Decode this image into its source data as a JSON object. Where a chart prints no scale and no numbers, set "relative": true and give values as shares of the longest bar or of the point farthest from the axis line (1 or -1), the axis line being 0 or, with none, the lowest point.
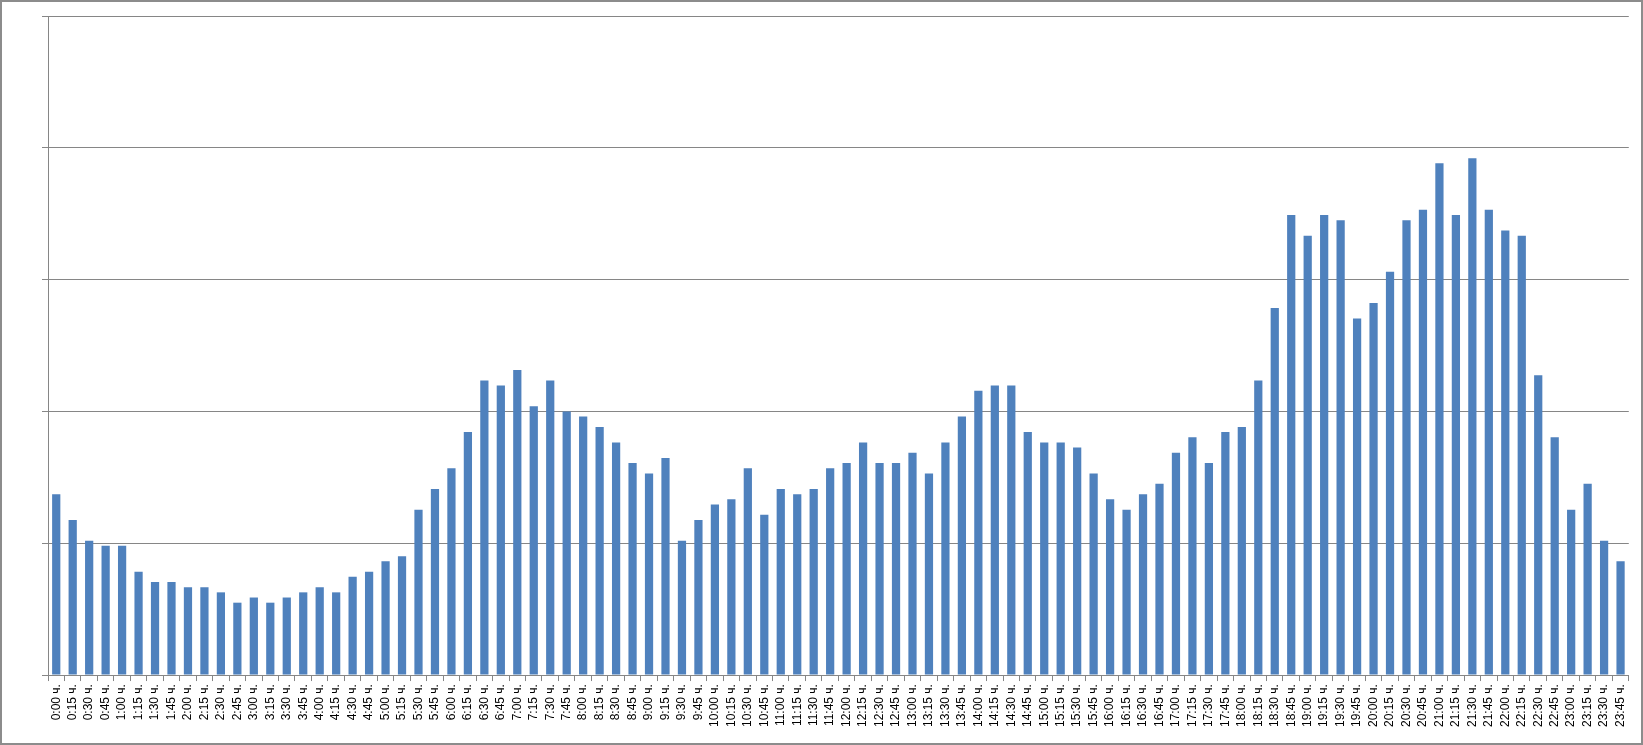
{
  "chart_data": {
    "type": "bar",
    "relative": true,
    "grid": "y",
    "color": "#4f81bd",
    "categories": [
      "0:00 ч.",
      "0:15 ч.",
      "0:30 ч.",
      "0:45 ч.",
      "1:00 ч.",
      "1:15 ч.",
      "1:30 ч.",
      "1:45 ч.",
      "2:00 ч.",
      "2:15 ч.",
      "2:30 ч.",
      "2:45 ч.",
      "3:00 ч.",
      "3:15 ч.",
      "3:30 ч.",
      "3:45 ч.",
      "4:00 ч.",
      "4:15 ч.",
      "4:30 ч.",
      "4:45 ч.",
      "5:00 ч.",
      "5:15 ч.",
      "5:30 ч.",
      "5:45 ч.",
      "6:00 ч.",
      "6:15 ч.",
      "6:30 ч.",
      "6:45 ч.",
      "7:00 ч.",
      "7:15 ч.",
      "7:30 ч.",
      "7:45 ч.",
      "8:00 ч.",
      "8:15 ч.",
      "8:30 ч.",
      "8:45 ч.",
      "9:00 ч.",
      "9:15 ч.",
      "9:30 ч.",
      "9:45 ч.",
      "10:00 ч.",
      "10:15 ч.",
      "10:30 ч.",
      "10:45 ч.",
      "11:00 ч.",
      "11:15 ч.",
      "11:30 ч.",
      "11:45 ч.",
      "12:00 ч.",
      "12:15 ч.",
      "12:30 ч.",
      "12:45 ч.",
      "13:00 ч.",
      "13:15 ч.",
      "13:30 ч.",
      "13:45 ч.",
      "14:00 ч.",
      "14:15 ч.",
      "14:30 ч.",
      "14:45 ч.",
      "15:00 ч.",
      "15:15 ч.",
      "15:30 ч.",
      "15:45 ч.",
      "16:00 ч.",
      "16:15 ч.",
      "16:30 ч.",
      "16:45 ч.",
      "17:00 ч.",
      "17:15 ч.",
      "17:30 ч.",
      "17:45 ч.",
      "18:00 ч.",
      "18:15 ч.",
      "18:30 ч.",
      "18:45 ч.",
      "19:00 ч.",
      "19:15 ч.",
      "19:30 ч.",
      "19:45 ч.",
      "20:00 ч.",
      "20:15 ч.",
      "20:30 ч.",
      "20:45 ч.",
      "21:00 ч.",
      "21:15 ч.",
      "21:30 ч.",
      "21:45 ч.",
      "22:00 ч.",
      "22:15 ч.",
      "22:30 ч.",
      "22:45 ч.",
      "23:00 ч.",
      "23:15 ч.",
      "23:30 ч.",
      "23:45 ч."
    ],
    "values": [
      0.35,
      0.3,
      0.26,
      0.25,
      0.25,
      0.2,
      0.18,
      0.18,
      0.17,
      0.17,
      0.16,
      0.14,
      0.15,
      0.14,
      0.15,
      0.16,
      0.17,
      0.16,
      0.19,
      0.2,
      0.22,
      0.23,
      0.32,
      0.36,
      0.4,
      0.47,
      0.57,
      0.56,
      0.59,
      0.52,
      0.57,
      0.51,
      0.5,
      0.48,
      0.45,
      0.41,
      0.39,
      0.42,
      0.26,
      0.3,
      0.33,
      0.34,
      0.4,
      0.31,
      0.36,
      0.35,
      0.36,
      0.4,
      0.41,
      0.45,
      0.41,
      0.41,
      0.43,
      0.39,
      0.45,
      0.5,
      0.55,
      0.56,
      0.56,
      0.47,
      0.45,
      0.45,
      0.44,
      0.39,
      0.34,
      0.32,
      0.35,
      0.37,
      0.43,
      0.46,
      0.41,
      0.47,
      0.48,
      0.57,
      0.71,
      0.89,
      0.85,
      0.89,
      0.88,
      0.69,
      0.72,
      0.78,
      0.88,
      0.9,
      0.99,
      0.89,
      1,
      0.9,
      0.86,
      0.85,
      0.58,
      0.46,
      0.32,
      0.37,
      0.26,
      0.22
    ]
  }
}
